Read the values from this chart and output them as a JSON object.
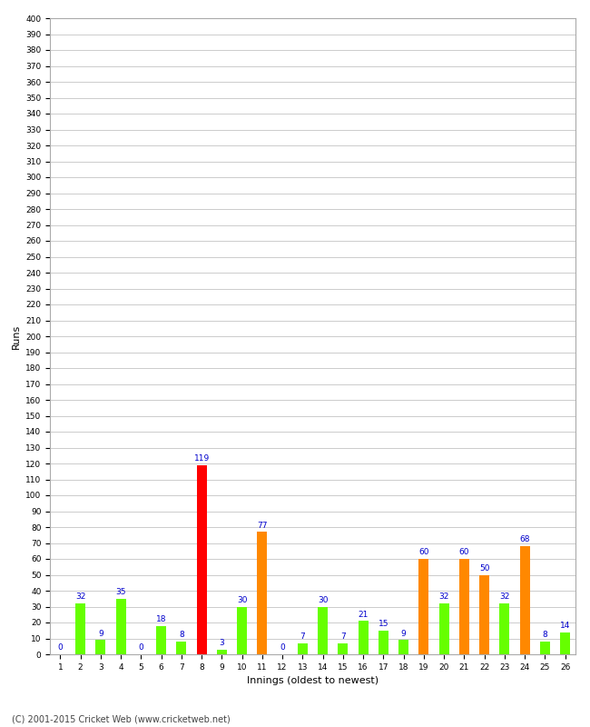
{
  "innings": [
    1,
    2,
    3,
    4,
    5,
    6,
    7,
    8,
    9,
    10,
    11,
    12,
    13,
    14,
    15,
    16,
    17,
    18,
    19,
    20,
    21,
    22,
    23,
    24,
    25,
    26
  ],
  "values": [
    0,
    32,
    9,
    35,
    0,
    18,
    8,
    119,
    3,
    30,
    77,
    0,
    7,
    30,
    7,
    21,
    15,
    9,
    60,
    32,
    60,
    50,
    32,
    68,
    8,
    14
  ],
  "colors": [
    "#66ff00",
    "#66ff00",
    "#66ff00",
    "#66ff00",
    "#66ff00",
    "#66ff00",
    "#66ff00",
    "#ff0000",
    "#66ff00",
    "#66ff00",
    "#ff8800",
    "#66ff00",
    "#66ff00",
    "#66ff00",
    "#66ff00",
    "#66ff00",
    "#66ff00",
    "#66ff00",
    "#ff8800",
    "#66ff00",
    "#ff8800",
    "#ff8800",
    "#66ff00",
    "#ff8800",
    "#66ff00",
    "#66ff00"
  ],
  "xlabel": "Innings (oldest to newest)",
  "ylabel": "Runs",
  "ylim": [
    0,
    400
  ],
  "ytick_step": 10,
  "background_color": "#ffffff",
  "grid_color": "#cccccc",
  "label_color": "#0000cc",
  "label_fontsize": 6.5,
  "tick_fontsize": 6.5,
  "axis_label_fontsize": 8,
  "footer": "(C) 2001-2015 Cricket Web (www.cricketweb.net)",
  "bar_width": 0.5
}
